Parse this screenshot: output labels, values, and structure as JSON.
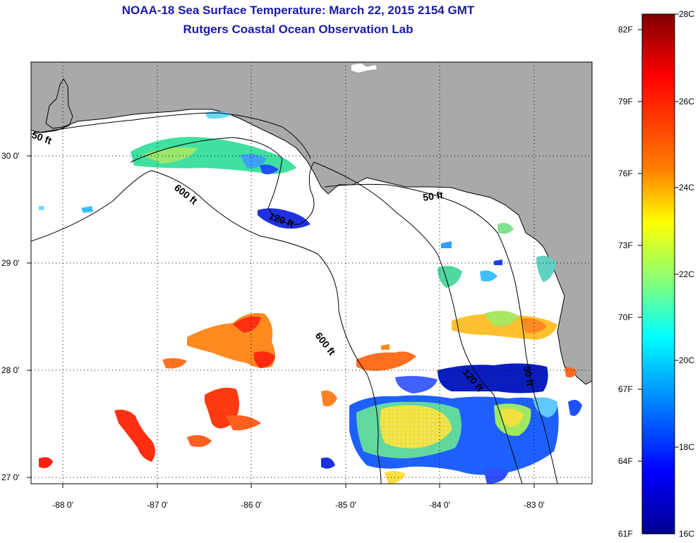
{
  "title_line1": "NOAA-18 Sea Surface Temperature:  March 22, 2015 2154 GMT",
  "title_line2": "Rutgers Coastal Ocean Observation Lab",
  "map": {
    "lon_ticks": [
      "-88 0'",
      "-87 0'",
      "-86 0'",
      "-85 0'",
      "-84 0'",
      "-83 0'"
    ],
    "lat_ticks": [
      "30 0'",
      "29 0'",
      "28 0'",
      "27 0'"
    ],
    "contour_labels": [
      "50 ft",
      "600 ft",
      "120 ft",
      "50 ft",
      "600 ft",
      "120 ft",
      "50 ft"
    ],
    "colors": {
      "land": "#a9a9a9",
      "water": "#ffffff",
      "coastline": "#000000",
      "grid": "#000000"
    }
  },
  "colorbar": {
    "fahrenheit_labels": [
      "82F",
      "79F",
      "76F",
      "73F",
      "70F",
      "67F",
      "64F",
      "61F"
    ],
    "celsius_labels": [
      "28C",
      "26C",
      "24C",
      "22C",
      "20C",
      "18C",
      "16C"
    ],
    "scale_colors": [
      "#7f0000",
      "#ff0000",
      "#ff8000",
      "#ffff00",
      "#80ff80",
      "#00ffff",
      "#0080ff",
      "#0000ff",
      "#00008f"
    ]
  }
}
